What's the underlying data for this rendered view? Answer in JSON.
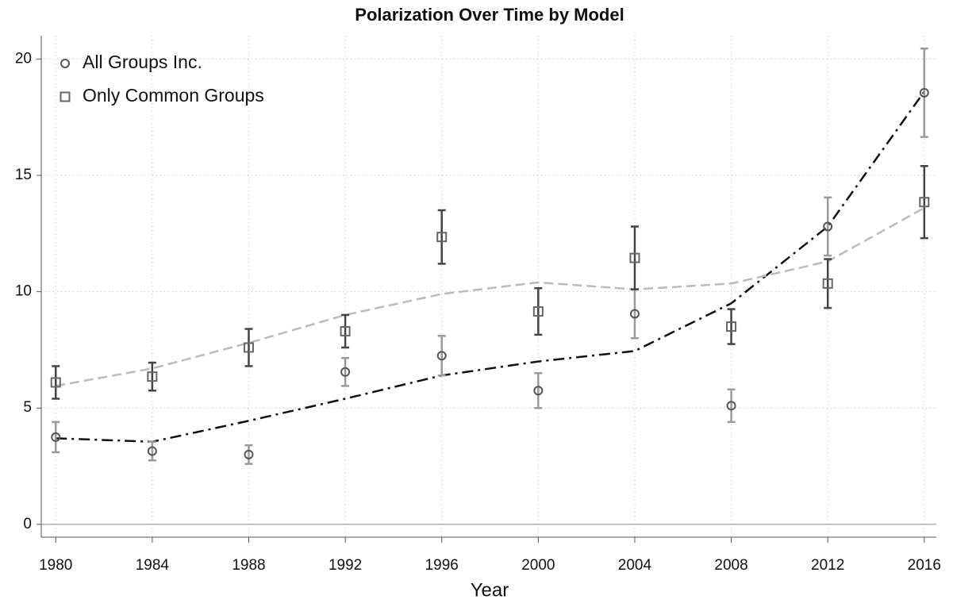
{
  "chart_data": {
    "type": "scatter",
    "title": "Polarization Over Time by Model",
    "x_label": "Year",
    "x": [
      1980,
      1984,
      1988,
      1992,
      1996,
      2000,
      2004,
      2008,
      2012,
      2016
    ],
    "xlim": [
      1979.4,
      2016.5
    ],
    "xticks": [
      1980,
      1984,
      1988,
      1992,
      1996,
      2000,
      2004,
      2008,
      2012,
      2016
    ],
    "ylim": [
      -0.55,
      21
    ],
    "yticks": [
      0,
      5,
      10,
      15,
      20
    ],
    "grid": true,
    "legend": "top-left",
    "series": [
      {
        "name": "All Groups Inc.",
        "marker": "circle",
        "color": "#555555",
        "error_color": "#9a9a9a",
        "values": [
          3.75,
          3.15,
          3.0,
          6.55,
          7.25,
          5.75,
          9.05,
          5.1,
          12.8,
          18.55
        ],
        "errors": [
          0.65,
          0.4,
          0.4,
          0.6,
          0.85,
          0.75,
          1.05,
          0.7,
          1.25,
          1.9
        ]
      },
      {
        "name": "Only Common Groups",
        "marker": "square",
        "color": "#666666",
        "error_color": "#444444",
        "values": [
          6.1,
          6.35,
          7.6,
          8.3,
          12.35,
          9.15,
          11.45,
          8.5,
          10.35,
          13.85
        ],
        "errors": [
          0.7,
          0.6,
          0.8,
          0.7,
          1.15,
          1.0,
          1.35,
          0.75,
          1.05,
          1.55
        ]
      }
    ],
    "trend_lines": [
      {
        "color": "#111111",
        "dash": "14 6 3 6",
        "values": [
          3.7,
          3.55,
          4.45,
          5.4,
          6.4,
          7.0,
          7.45,
          9.5,
          12.8,
          18.6
        ]
      },
      {
        "color": "#bbbbbb",
        "dash": "12 6",
        "values": [
          5.95,
          6.7,
          7.8,
          9.0,
          9.9,
          10.4,
          10.1,
          10.35,
          11.3,
          13.6
        ]
      }
    ]
  }
}
